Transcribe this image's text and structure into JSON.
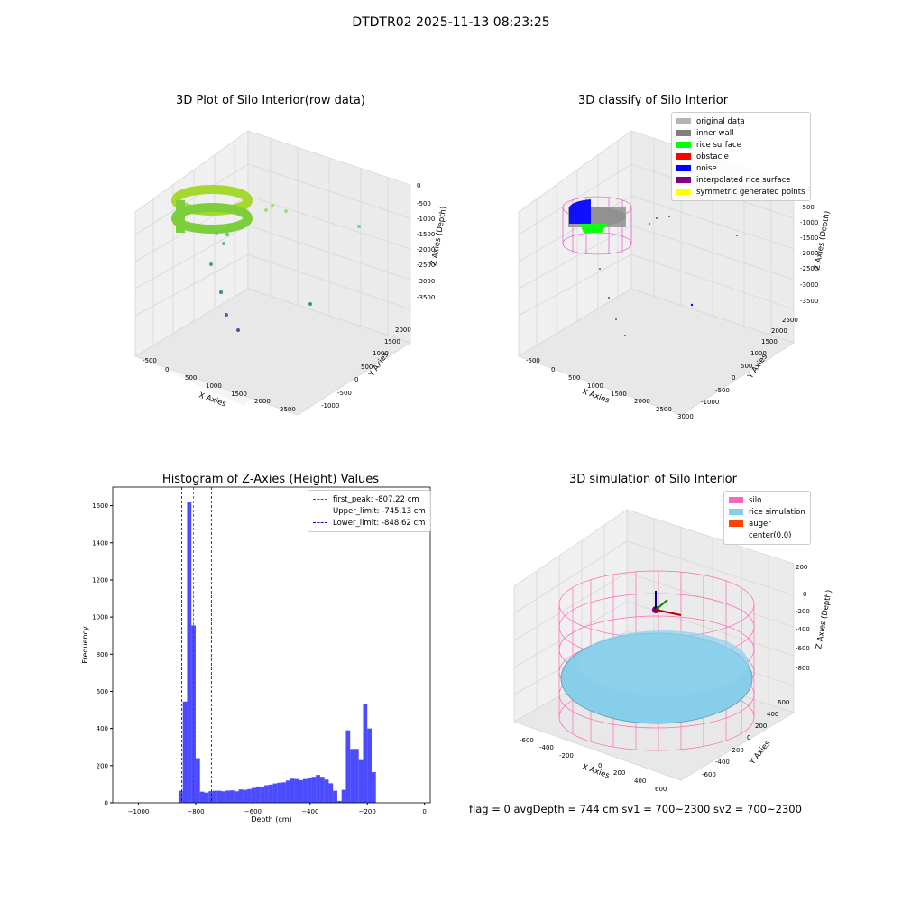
{
  "suptitle": "DTDTR02 2025-11-13 08:23:25",
  "chart_data": [
    {
      "type": "scatter",
      "title": "3D Plot of Silo Interior(row data)",
      "xlabel": "X Axies",
      "ylabel": "Y Axies",
      "zlabel": "Z Axies (Depth)",
      "x_ticks": [
        "-500",
        "0",
        "500",
        "1000",
        "1500",
        "2000",
        "2500"
      ],
      "y_ticks": [
        "-1000",
        "-500",
        "0",
        "500",
        "1000",
        "1500",
        "2000"
      ],
      "z_ticks": [
        "0",
        "-500",
        "-1000",
        "-1500",
        "-2000",
        "-2500",
        "-3000",
        "-3500"
      ],
      "colormap": "viridis",
      "description_points": "ring of points near x≈0–500, z≈-500 to -1000 with scattered outliers"
    },
    {
      "type": "scatter",
      "title": "3D classify of Silo Interior",
      "xlabel": "X Axies",
      "ylabel": "Y Axies",
      "zlabel": "Z Axies (Depth)",
      "x_ticks": [
        "-500",
        "0",
        "500",
        "1000",
        "1500",
        "2000",
        "2500",
        "3000"
      ],
      "y_ticks": [
        "-1000",
        "-500",
        "0",
        "500",
        "1000",
        "1500",
        "2000",
        "2500"
      ],
      "z_ticks": [
        "0",
        "-500",
        "-1000",
        "-1500",
        "-2000",
        "-2500",
        "-3000",
        "-3500"
      ],
      "legend": [
        {
          "label": "original data",
          "color": "#b4b4b4"
        },
        {
          "label": "inner wall",
          "color": "#808080"
        },
        {
          "label": "rice surface",
          "color": "#00ff00"
        },
        {
          "label": "obstacle",
          "color": "#ff0000"
        },
        {
          "label": "noise",
          "color": "#0000ff"
        },
        {
          "label": "interpolated rice surface",
          "color": "#800080"
        },
        {
          "label": "symmetric generated points",
          "color": "#ffff00"
        }
      ]
    },
    {
      "type": "bar",
      "title": "Histogram of Z-Axies (Height) Values",
      "xlabel": "Depth (cm)",
      "ylabel": "Frequency",
      "xlim": [
        -1090,
        20
      ],
      "ylim": [
        0,
        1700
      ],
      "x_ticks": [
        -1000,
        -800,
        -600,
        -400,
        -200,
        0
      ],
      "y_ticks": [
        0,
        200,
        400,
        600,
        800,
        1000,
        1200,
        1400,
        1600
      ],
      "bin_width": 15,
      "bins": [
        {
          "x0": -860,
          "v": 65
        },
        {
          "x0": -845,
          "v": 545
        },
        {
          "x0": -830,
          "v": 1620
        },
        {
          "x0": -815,
          "v": 955
        },
        {
          "x0": -800,
          "v": 240
        },
        {
          "x0": -785,
          "v": 60
        },
        {
          "x0": -770,
          "v": 55
        },
        {
          "x0": -755,
          "v": 62
        },
        {
          "x0": -740,
          "v": 65
        },
        {
          "x0": -725,
          "v": 65
        },
        {
          "x0": -710,
          "v": 62
        },
        {
          "x0": -695,
          "v": 66
        },
        {
          "x0": -680,
          "v": 67
        },
        {
          "x0": -665,
          "v": 62
        },
        {
          "x0": -650,
          "v": 72
        },
        {
          "x0": -635,
          "v": 70
        },
        {
          "x0": -620,
          "v": 74
        },
        {
          "x0": -605,
          "v": 80
        },
        {
          "x0": -590,
          "v": 88
        },
        {
          "x0": -575,
          "v": 85
        },
        {
          "x0": -560,
          "v": 95
        },
        {
          "x0": -545,
          "v": 98
        },
        {
          "x0": -530,
          "v": 104
        },
        {
          "x0": -515,
          "v": 108
        },
        {
          "x0": -500,
          "v": 110
        },
        {
          "x0": -485,
          "v": 120
        },
        {
          "x0": -470,
          "v": 130
        },
        {
          "x0": -455,
          "v": 128
        },
        {
          "x0": -440,
          "v": 122
        },
        {
          "x0": -425,
          "v": 128
        },
        {
          "x0": -410,
          "v": 135
        },
        {
          "x0": -395,
          "v": 140
        },
        {
          "x0": -380,
          "v": 150
        },
        {
          "x0": -365,
          "v": 140
        },
        {
          "x0": -350,
          "v": 125
        },
        {
          "x0": -335,
          "v": 105
        },
        {
          "x0": -320,
          "v": 65
        },
        {
          "x0": -305,
          "v": 10
        },
        {
          "x0": -290,
          "v": 70
        },
        {
          "x0": -275,
          "v": 390
        },
        {
          "x0": -260,
          "v": 290
        },
        {
          "x0": -245,
          "v": 290
        },
        {
          "x0": -230,
          "v": 230
        },
        {
          "x0": -215,
          "v": 530
        },
        {
          "x0": -200,
          "v": 400
        },
        {
          "x0": -185,
          "v": 165
        }
      ],
      "lines": [
        {
          "label": "first_peak: -807.22 cm",
          "x": -807.22,
          "color": "#ff0000"
        },
        {
          "label": "Upper_limit: -745.13 cm",
          "x": -745.13,
          "color": "#0000aa"
        },
        {
          "label": "Lower_limit: -848.62 cm",
          "x": -848.62,
          "color": "#0000aa"
        }
      ]
    },
    {
      "type": "scatter",
      "title": "3D simulation of Silo Interior",
      "xlabel": "X Axies",
      "ylabel": "Y Axies",
      "zlabel": "Z Axies (Depth)",
      "x_ticks": [
        "-600",
        "-400",
        "-200",
        "0",
        "200",
        "400",
        "600"
      ],
      "y_ticks": [
        "-600",
        "-400",
        "-200",
        "0",
        "200",
        "400",
        "600"
      ],
      "z_ticks": [
        "200",
        "0",
        "-200",
        "-400",
        "-600",
        "-800"
      ],
      "legend": [
        {
          "label": "silo",
          "color": "#ff69b4"
        },
        {
          "label": "rice simulation",
          "color": "#87ceeb"
        },
        {
          "label": "auger",
          "color": "#ff4500"
        },
        {
          "label": "center(0,0)",
          "color": ""
        }
      ]
    }
  ],
  "footer": "flag = 0     avgDepth = 744 cm  sv1 = 700~2300  sv2 = 700~2300"
}
